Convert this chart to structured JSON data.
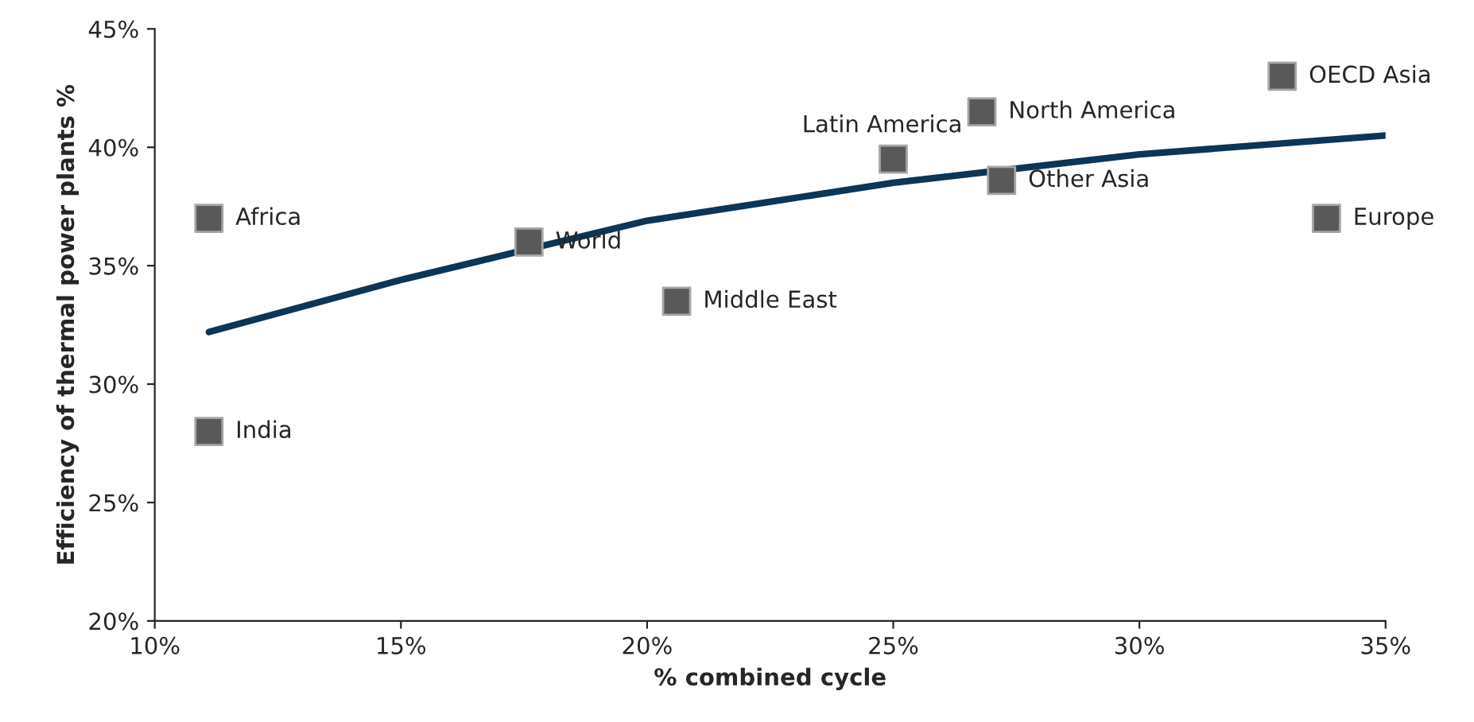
{
  "chart_data": {
    "type": "scatter",
    "xlabel": "% combined cycle",
    "ylabel": "Efficiency of thermal power plants %",
    "series": [
      {
        "color": "#595959",
        "marker": "square",
        "x": [
          11.1,
          11.1,
          17.6,
          20.6,
          25.0,
          26.8,
          27.2,
          32.9,
          33.8
        ],
        "values": [
          37.0,
          28.0,
          36.0,
          33.5,
          39.5,
          41.5,
          38.6,
          43.0,
          37.0
        ]
      },
      {
        "type": "line",
        "color": "#0c3556",
        "marker": "none",
        "x": [
          11.1,
          15,
          20,
          25,
          30,
          35
        ],
        "values": [
          32.2,
          34.4,
          36.9,
          38.5,
          39.7,
          40.5
        ]
      }
    ],
    "annotations": [
      {
        "text": "Africa",
        "x": 11.1,
        "y": 37.0
      },
      {
        "text": "India",
        "x": 11.1,
        "y": 28.0
      },
      {
        "text": "World",
        "x": 17.6,
        "y": 36.0
      },
      {
        "text": "Middle East",
        "x": 20.6,
        "y": 33.5
      },
      {
        "text": "Latin America",
        "x": 25.0,
        "y": 39.5
      },
      {
        "text": "North America",
        "x": 26.8,
        "y": 41.5
      },
      {
        "text": "Other Asia",
        "x": 27.2,
        "y": 38.6
      },
      {
        "text": "OECD Asia",
        "x": 32.9,
        "y": 43.0
      },
      {
        "text": "Europe",
        "x": 33.8,
        "y": 37.0
      }
    ],
    "xlim": [
      10,
      35
    ],
    "xticks": [
      {
        "value": 10,
        "label": "10%"
      },
      {
        "value": 15,
        "label": "15%"
      },
      {
        "value": 20,
        "label": "20%"
      },
      {
        "value": 25,
        "label": "25%"
      },
      {
        "value": 30,
        "label": "30%"
      },
      {
        "value": 35,
        "label": "35%"
      }
    ],
    "ylim": [
      20,
      45
    ],
    "yticks": [
      {
        "value": 20,
        "label": "20%"
      },
      {
        "value": 25,
        "label": "25%"
      },
      {
        "value": 30,
        "label": "30%"
      },
      {
        "value": 35,
        "label": "35%"
      },
      {
        "value": 40,
        "label": "40%"
      },
      {
        "value": 45,
        "label": "45%"
      }
    ],
    "grid": false,
    "legend": false
  }
}
